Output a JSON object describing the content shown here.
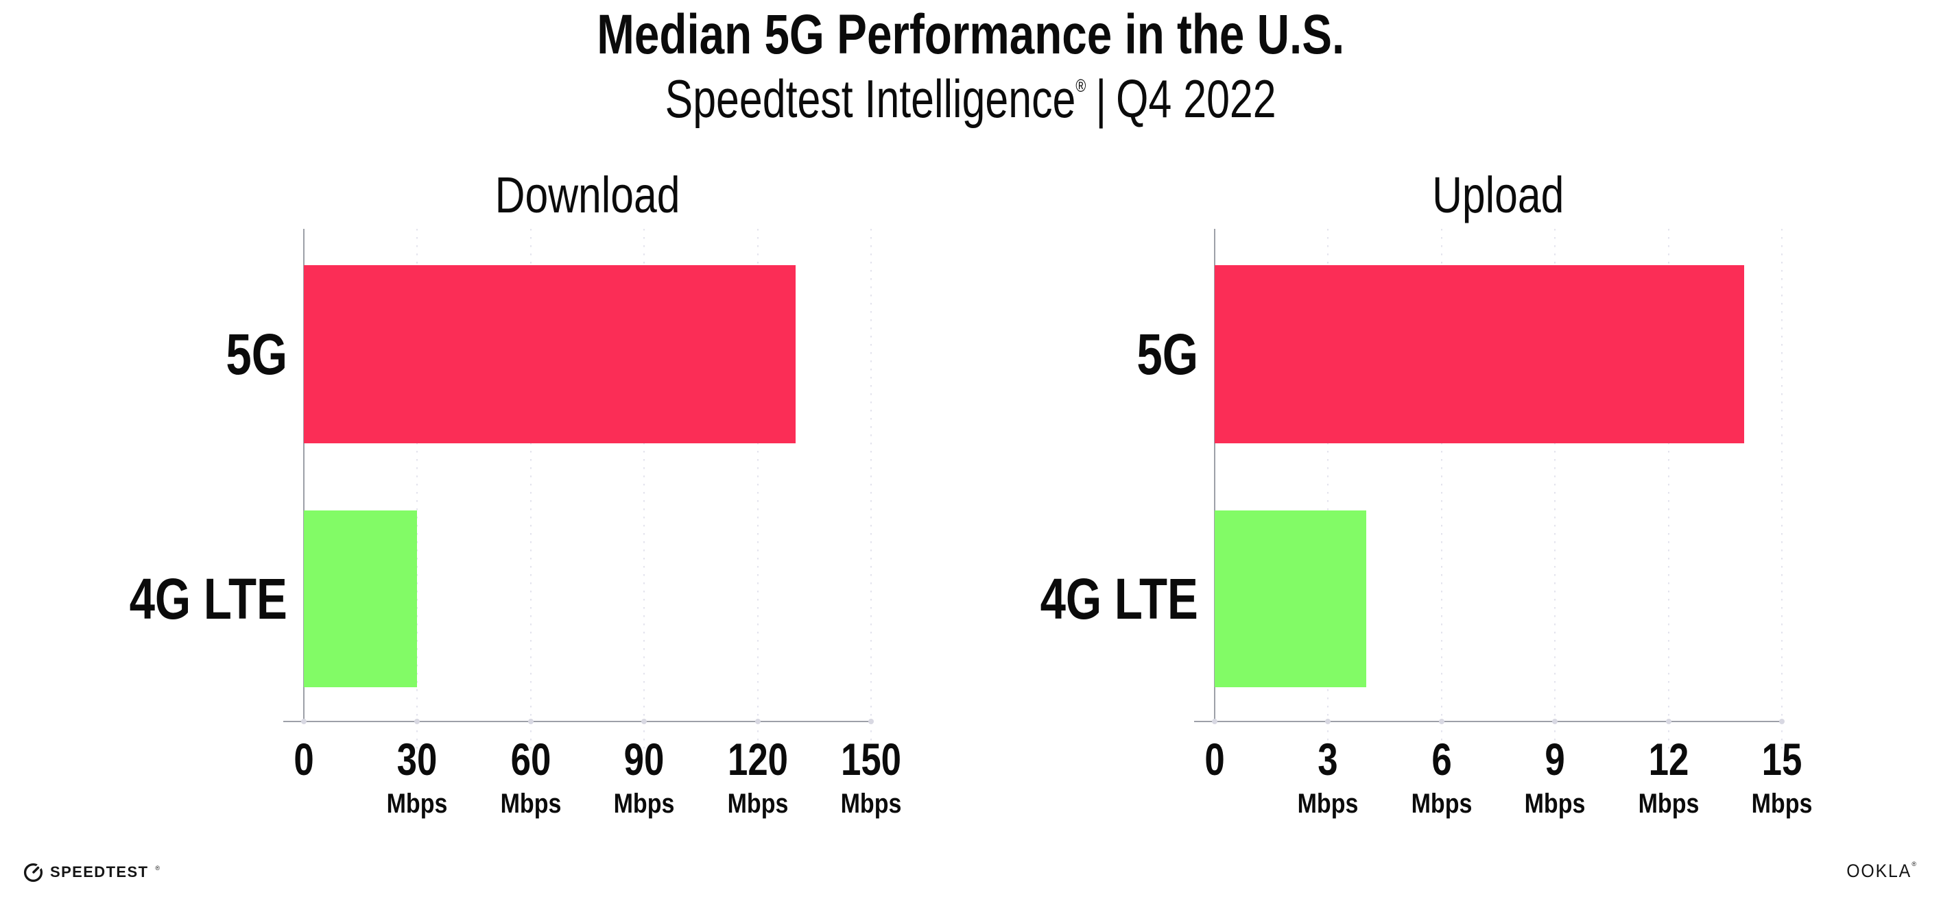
{
  "page_title": "Median 5G Performance in the U.S.",
  "subtitle": {
    "product": "Speedtest Intelligence",
    "registered_mark": "®",
    "separator": "|",
    "period": "Q4 2022"
  },
  "colors": {
    "bar_5g": "#fb2d56",
    "bar_4g_lte": "#82fb66",
    "axis": "#9da0a8",
    "gridline": "#e3e3ed",
    "tick_dot": "#d8d8e2",
    "text": "#0b0b0b",
    "background": "#ffffff"
  },
  "chart_data": [
    {
      "type": "bar",
      "orientation": "horizontal",
      "title": "Download",
      "categories": [
        "5G",
        "4G LTE"
      ],
      "values": [
        130,
        30
      ],
      "unit": "Mbps",
      "xlim": [
        0,
        150
      ],
      "xticks": [
        0,
        30,
        60,
        90,
        120,
        150
      ],
      "series_colors": [
        "#fb2d56",
        "#82fb66"
      ],
      "grid": "vertical-dotted",
      "legend_position": "none"
    },
    {
      "type": "bar",
      "orientation": "horizontal",
      "title": "Upload",
      "categories": [
        "5G",
        "4G LTE"
      ],
      "values": [
        14,
        4
      ],
      "unit": "Mbps",
      "xlim": [
        0,
        15
      ],
      "xticks": [
        0,
        3,
        6,
        9,
        12,
        15
      ],
      "series_colors": [
        "#fb2d56",
        "#82fb66"
      ],
      "grid": "vertical-dotted",
      "legend_position": "none"
    }
  ],
  "footer": {
    "speedtest_wordmark": "SPEEDTEST",
    "speedtest_registered": "®",
    "ookla_wordmark": "OOKLA",
    "ookla_registered": "®"
  }
}
